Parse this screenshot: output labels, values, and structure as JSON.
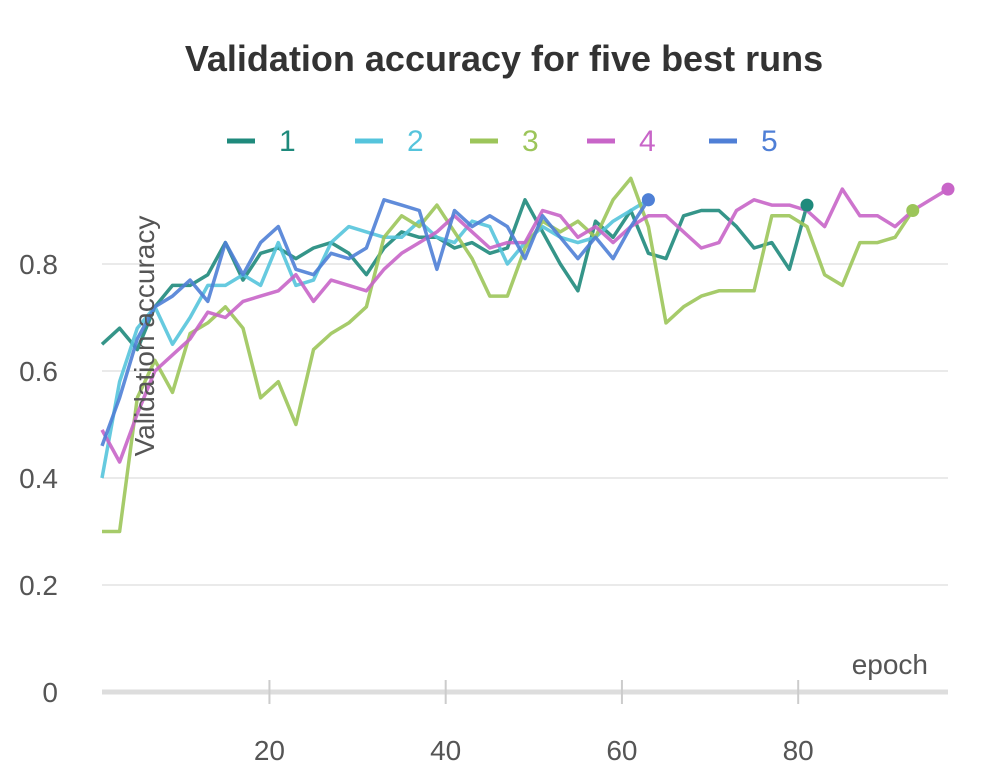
{
  "chart_data": {
    "type": "line",
    "title": "Validation accuracy for five best runs",
    "xlabel": "epoch",
    "ylabel": "Validation accuracy",
    "xlim": [
      1,
      97
    ],
    "ylim": [
      0,
      1
    ],
    "xticks": [
      20,
      40,
      60,
      80
    ],
    "yticks": [
      0,
      0.2,
      0.4,
      0.6,
      0.8
    ],
    "grid": true,
    "legend_position": "top",
    "series": [
      {
        "name": "1",
        "color": "#1f8a7c",
        "x": [
          1,
          3,
          5,
          7,
          9,
          11,
          13,
          15,
          17,
          19,
          21,
          23,
          25,
          27,
          29,
          31,
          33,
          35,
          37,
          39,
          41,
          43,
          45,
          47,
          49,
          51,
          53,
          55,
          57,
          59,
          61,
          63,
          65,
          67,
          69,
          71,
          73,
          75,
          77,
          79,
          81
        ],
        "y": [
          0.65,
          0.68,
          0.64,
          0.72,
          0.76,
          0.76,
          0.78,
          0.84,
          0.77,
          0.82,
          0.83,
          0.81,
          0.83,
          0.84,
          0.82,
          0.78,
          0.83,
          0.86,
          0.85,
          0.85,
          0.83,
          0.84,
          0.82,
          0.83,
          0.92,
          0.86,
          0.8,
          0.75,
          0.88,
          0.85,
          0.9,
          0.82,
          0.81,
          0.89,
          0.9,
          0.9,
          0.87,
          0.83,
          0.84,
          0.79,
          0.91
        ]
      },
      {
        "name": "2",
        "color": "#55c4dc",
        "x": [
          1,
          3,
          5,
          7,
          9,
          11,
          13,
          15,
          17,
          19,
          21,
          23,
          25,
          27,
          29,
          31,
          33,
          35,
          37,
          39,
          41,
          43,
          45,
          47,
          49,
          51,
          53,
          55,
          57,
          59,
          61,
          63
        ],
        "y": [
          0.4,
          0.58,
          0.68,
          0.72,
          0.65,
          0.7,
          0.76,
          0.76,
          0.78,
          0.76,
          0.84,
          0.76,
          0.77,
          0.84,
          0.87,
          0.86,
          0.85,
          0.85,
          0.88,
          0.85,
          0.84,
          0.88,
          0.87,
          0.8,
          0.84,
          0.87,
          0.85,
          0.84,
          0.85,
          0.88,
          0.9,
          0.92
        ]
      },
      {
        "name": "3",
        "color": "#9cc55a",
        "x": [
          1,
          3,
          5,
          7,
          9,
          11,
          13,
          15,
          17,
          19,
          21,
          23,
          25,
          27,
          29,
          31,
          33,
          35,
          37,
          39,
          41,
          43,
          45,
          47,
          49,
          51,
          53,
          55,
          57,
          59,
          61,
          63,
          65,
          67,
          69,
          71,
          73,
          75,
          77,
          79,
          81,
          83,
          85,
          87,
          89,
          91,
          93
        ],
        "y": [
          0.3,
          0.3,
          0.55,
          0.62,
          0.56,
          0.67,
          0.69,
          0.72,
          0.68,
          0.55,
          0.58,
          0.5,
          0.64,
          0.67,
          0.69,
          0.72,
          0.85,
          0.89,
          0.87,
          0.91,
          0.86,
          0.81,
          0.74,
          0.74,
          0.83,
          0.88,
          0.86,
          0.88,
          0.85,
          0.92,
          0.96,
          0.87,
          0.69,
          0.72,
          0.74,
          0.75,
          0.75,
          0.75,
          0.89,
          0.89,
          0.87,
          0.78,
          0.76,
          0.84,
          0.84,
          0.85,
          0.9
        ]
      },
      {
        "name": "4",
        "color": "#c865c8",
        "x": [
          1,
          3,
          5,
          7,
          9,
          11,
          13,
          15,
          17,
          19,
          21,
          23,
          25,
          27,
          29,
          31,
          33,
          35,
          37,
          39,
          41,
          43,
          45,
          47,
          49,
          51,
          53,
          55,
          57,
          59,
          61,
          63,
          65,
          67,
          69,
          71,
          73,
          75,
          77,
          79,
          81,
          83,
          85,
          87,
          89,
          91,
          93,
          95,
          97
        ],
        "y": [
          0.49,
          0.43,
          0.52,
          0.6,
          0.63,
          0.66,
          0.71,
          0.7,
          0.73,
          0.74,
          0.75,
          0.78,
          0.73,
          0.77,
          0.76,
          0.75,
          0.79,
          0.82,
          0.84,
          0.86,
          0.89,
          0.86,
          0.83,
          0.84,
          0.84,
          0.9,
          0.89,
          0.85,
          0.87,
          0.84,
          0.87,
          0.89,
          0.89,
          0.86,
          0.83,
          0.84,
          0.9,
          0.92,
          0.91,
          0.91,
          0.9,
          0.87,
          0.94,
          0.89,
          0.89,
          0.87,
          0.9,
          0.92,
          0.94
        ]
      },
      {
        "name": "5",
        "color": "#4f7fd6",
        "x": [
          1,
          3,
          5,
          7,
          9,
          11,
          13,
          15,
          17,
          19,
          21,
          23,
          25,
          27,
          29,
          31,
          33,
          35,
          37,
          39,
          41,
          43,
          45,
          47,
          49,
          51,
          53,
          55,
          57,
          59,
          61,
          63
        ],
        "y": [
          0.46,
          0.55,
          0.66,
          0.72,
          0.74,
          0.77,
          0.73,
          0.84,
          0.78,
          0.84,
          0.87,
          0.79,
          0.78,
          0.82,
          0.81,
          0.83,
          0.92,
          0.91,
          0.9,
          0.79,
          0.9,
          0.87,
          0.89,
          0.87,
          0.81,
          0.89,
          0.85,
          0.81,
          0.85,
          0.81,
          0.87,
          0.92
        ]
      }
    ]
  }
}
